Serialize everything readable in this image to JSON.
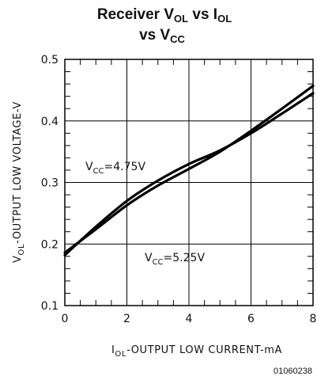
{
  "chart_data": {
    "type": "line",
    "title_parts": [
      "Receiver V",
      "OL",
      " vs I",
      "OL"
    ],
    "title_line2_parts": [
      "vs V",
      "CC"
    ],
    "xlabel_parts": [
      "I",
      "OL",
      "-OUTPUT LOW CURRENT-mA"
    ],
    "ylabel_parts": [
      "V",
      "OL",
      "-OUTPUT LOW VOLTAGE-V"
    ],
    "xlim": [
      0,
      8
    ],
    "ylim": [
      0.1,
      0.5
    ],
    "x_ticks": [
      0,
      2,
      4,
      6,
      8
    ],
    "y_ticks": [
      0.1,
      0.2,
      0.3,
      0.4,
      0.5
    ],
    "x_tick_labels": [
      "0",
      "2",
      "4",
      "6",
      "8"
    ],
    "y_tick_labels": [
      "0.1",
      "0.2",
      "0.3",
      "0.4",
      "0.5"
    ],
    "grid": true,
    "series": [
      {
        "name_parts": [
          "V",
          "CC",
          "=4.75V"
        ],
        "x": [
          0,
          1,
          2,
          3,
          4,
          5,
          6,
          7,
          8
        ],
        "y": [
          0.182,
          0.228,
          0.27,
          0.303,
          0.33,
          0.352,
          0.38,
          0.412,
          0.445
        ]
      },
      {
        "name_parts": [
          "V",
          "CC",
          "=5.25V"
        ],
        "x": [
          0,
          1,
          2,
          3,
          4,
          5,
          6,
          7,
          8
        ],
        "y": [
          0.186,
          0.224,
          0.263,
          0.295,
          0.322,
          0.35,
          0.384,
          0.42,
          0.457
        ]
      }
    ],
    "figure_code": "01060238"
  }
}
